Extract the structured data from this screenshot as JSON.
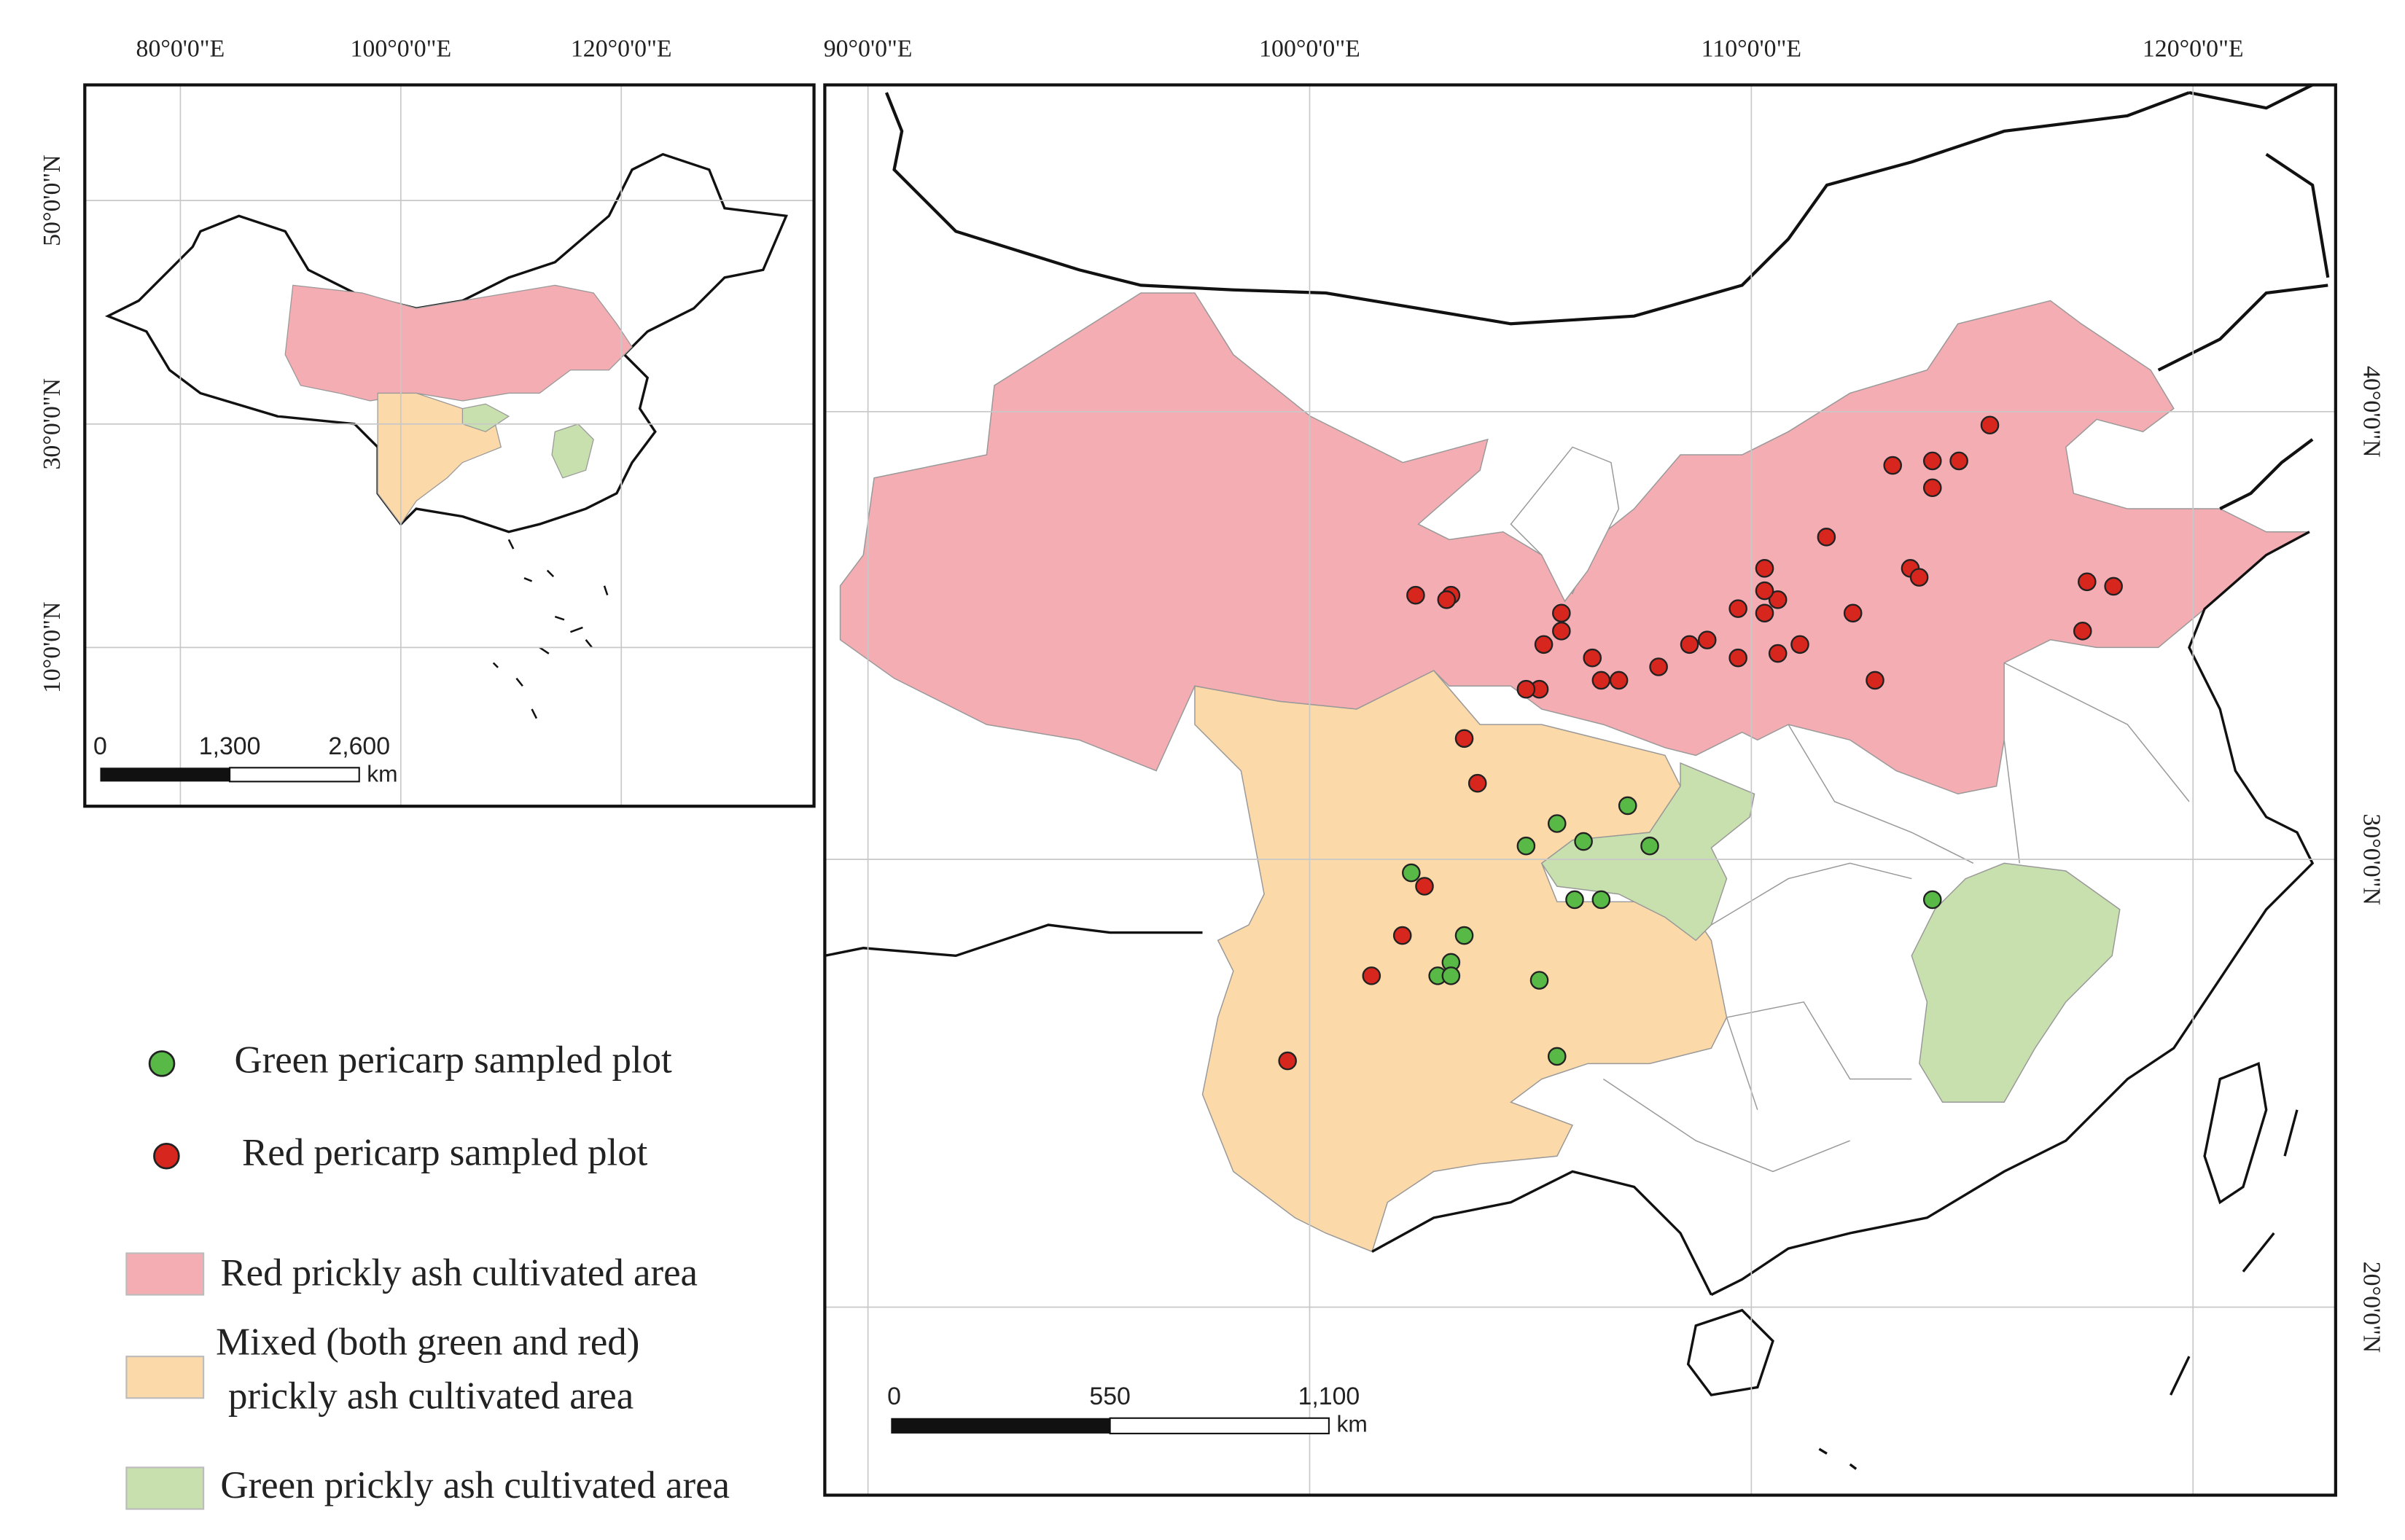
{
  "inset": {
    "lon_ticks": [
      {
        "value": 80,
        "label": "80°0'0\"E"
      },
      {
        "value": 100,
        "label": "100°0'0\"E"
      },
      {
        "value": 120,
        "label": "120°0'0\"E"
      }
    ],
    "lat_ticks": [
      {
        "value": 10,
        "label": "10°0'0\"N"
      },
      {
        "value": 30,
        "label": "30°0'0\"N"
      },
      {
        "value": 50,
        "label": "50°0'0\"N"
      }
    ],
    "scale_bar": {
      "labels": [
        "0",
        "1,300",
        "2,600"
      ],
      "unit": "km"
    }
  },
  "main": {
    "lon_ticks": [
      {
        "value": 90,
        "label": "90°0'0\"E"
      },
      {
        "value": 100,
        "label": "100°0'0\"E"
      },
      {
        "value": 110,
        "label": "110°0'0\"E"
      },
      {
        "value": 120,
        "label": "120°0'0\"E"
      }
    ],
    "lat_ticks": [
      {
        "value": 20,
        "label": "20°0'0\"N"
      },
      {
        "value": 30,
        "label": "30°0'0\"N"
      },
      {
        "value": 40,
        "label": "40°0'0\"N"
      }
    ],
    "scale_bar": {
      "labels": [
        "0",
        "550",
        "1,100"
      ],
      "unit": "km"
    },
    "red_plots": [
      [
        115.4,
        39.7
      ],
      [
        113.2,
        38.8
      ],
      [
        114.1,
        38.9
      ],
      [
        114.7,
        38.9
      ],
      [
        114.1,
        38.3
      ],
      [
        111.7,
        37.2
      ],
      [
        113.6,
        36.5
      ],
      [
        113.8,
        36.3
      ],
      [
        117.6,
        36.2
      ],
      [
        118.2,
        36.1
      ],
      [
        117.5,
        35.1
      ],
      [
        112.8,
        34.0
      ],
      [
        112.3,
        35.5
      ],
      [
        111.1,
        34.8
      ],
      [
        110.6,
        34.6
      ],
      [
        110.6,
        35.8
      ],
      [
        110.3,
        36.0
      ],
      [
        110.3,
        36.5
      ],
      [
        110.3,
        35.5
      ],
      [
        109.7,
        35.6
      ],
      [
        109.0,
        34.9
      ],
      [
        108.6,
        34.8
      ],
      [
        109.7,
        34.5
      ],
      [
        107.9,
        34.3
      ],
      [
        107.0,
        34.0
      ],
      [
        106.6,
        34.0
      ],
      [
        106.4,
        34.5
      ],
      [
        105.7,
        35.1
      ],
      [
        105.7,
        35.5
      ],
      [
        105.3,
        34.8
      ],
      [
        105.2,
        33.8
      ],
      [
        104.9,
        33.8
      ],
      [
        102.4,
        35.9
      ],
      [
        103.2,
        35.9
      ],
      [
        103.1,
        35.8
      ],
      [
        103.5,
        32.7
      ],
      [
        103.8,
        31.7
      ],
      [
        102.6,
        29.4
      ],
      [
        102.1,
        28.3
      ],
      [
        101.4,
        27.4
      ],
      [
        99.5,
        25.5
      ]
    ],
    "green_plots": [
      [
        105.6,
        30.8
      ],
      [
        107.2,
        31.2
      ],
      [
        106.2,
        30.4
      ],
      [
        104.9,
        30.3
      ],
      [
        107.7,
        30.3
      ],
      [
        102.3,
        29.7
      ],
      [
        106.0,
        29.1
      ],
      [
        106.6,
        29.1
      ],
      [
        103.5,
        28.3
      ],
      [
        103.2,
        27.7
      ],
      [
        102.9,
        27.4
      ],
      [
        103.2,
        27.4
      ],
      [
        105.2,
        27.3
      ],
      [
        105.6,
        25.6
      ],
      [
        114.1,
        29.1
      ]
    ]
  },
  "legend": {
    "green_plot": "Green pericarp sampled plot",
    "red_plot": "Red pericarp sampled plot",
    "red_area": "Red prickly ash cultivated area",
    "mixed_area": [
      "Mixed (both green and red)",
      "prickly ash cultivated area"
    ],
    "green_area": "Green prickly ash cultivated area"
  }
}
